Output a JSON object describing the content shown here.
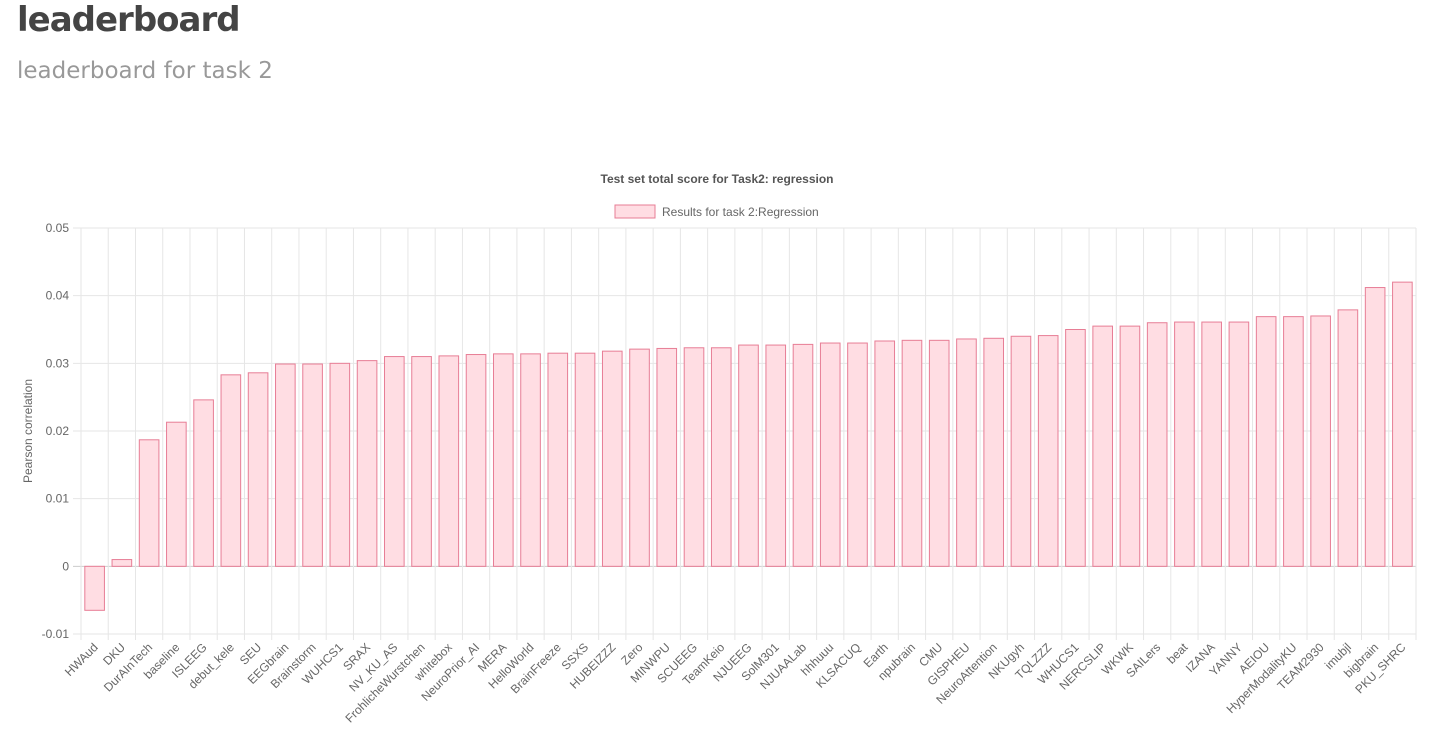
{
  "page": {
    "title": "leaderboard",
    "subtitle": "leaderboard for task 2"
  },
  "colors": {
    "bar_fill": "#ffdde3",
    "bar_stroke": "#e77d95",
    "grid": "#e6e6e6",
    "axis_text": "#666666"
  },
  "chart_data": {
    "type": "bar",
    "title": "Test set total score for Task2: regression",
    "xlabel": "",
    "ylabel": "Pearson correlation",
    "ylim": [
      -0.01,
      0.05
    ],
    "yticks": [
      "0.05",
      "0.04",
      "0.03",
      "0.02",
      "0.01",
      "0",
      "-0.01"
    ],
    "grid": true,
    "legend_position": "top",
    "categories": [
      "HWAud",
      "DKU",
      "DurAInTech",
      "baseline",
      "ISLEEG",
      "debut_kele",
      "SEU",
      "EEGbrain",
      "Brainstorm",
      "WUHCS1",
      "SRAX",
      "NV_KU_AS",
      "FrohlicheWurstchen",
      "whitebox",
      "NeuroPrior_AI",
      "MERA",
      "HelloWorld",
      "BrainFreeze",
      "SSXS",
      "HUBEIZZZ",
      "Zero",
      "MINWPU",
      "SCUEEG",
      "TeamKeio",
      "NJUEEG",
      "SolM301",
      "NJUAALab",
      "hhhuuu",
      "KLSACUQ",
      "Earth",
      "npubrain",
      "CMU",
      "GISPHEU",
      "NeuroAttention",
      "NKUgyh",
      "TQLZZZ",
      "WHUCS1",
      "NERCSLIP",
      "WKWK",
      "SAILers",
      "beat",
      "IZANA",
      "YANNY",
      "AEIOU",
      "HyperModalityKU",
      "TEAM2930",
      "imubjl",
      "bigbrain",
      "PKU_SHRC"
    ],
    "series": [
      {
        "name": "Results for task 2:Regression",
        "values": [
          -0.0065,
          0.001,
          0.0187,
          0.0213,
          0.0246,
          0.0283,
          0.0286,
          0.0299,
          0.0299,
          0.03,
          0.0304,
          0.031,
          0.031,
          0.0311,
          0.0313,
          0.0314,
          0.0314,
          0.0315,
          0.0315,
          0.0318,
          0.0321,
          0.0322,
          0.0323,
          0.0323,
          0.0327,
          0.0327,
          0.0328,
          0.033,
          0.033,
          0.0333,
          0.0334,
          0.0334,
          0.0336,
          0.0337,
          0.034,
          0.0341,
          0.035,
          0.0355,
          0.0355,
          0.036,
          0.0361,
          0.0361,
          0.0361,
          0.0369,
          0.0369,
          0.037,
          0.0379,
          0.0412,
          0.042
        ]
      }
    ]
  }
}
